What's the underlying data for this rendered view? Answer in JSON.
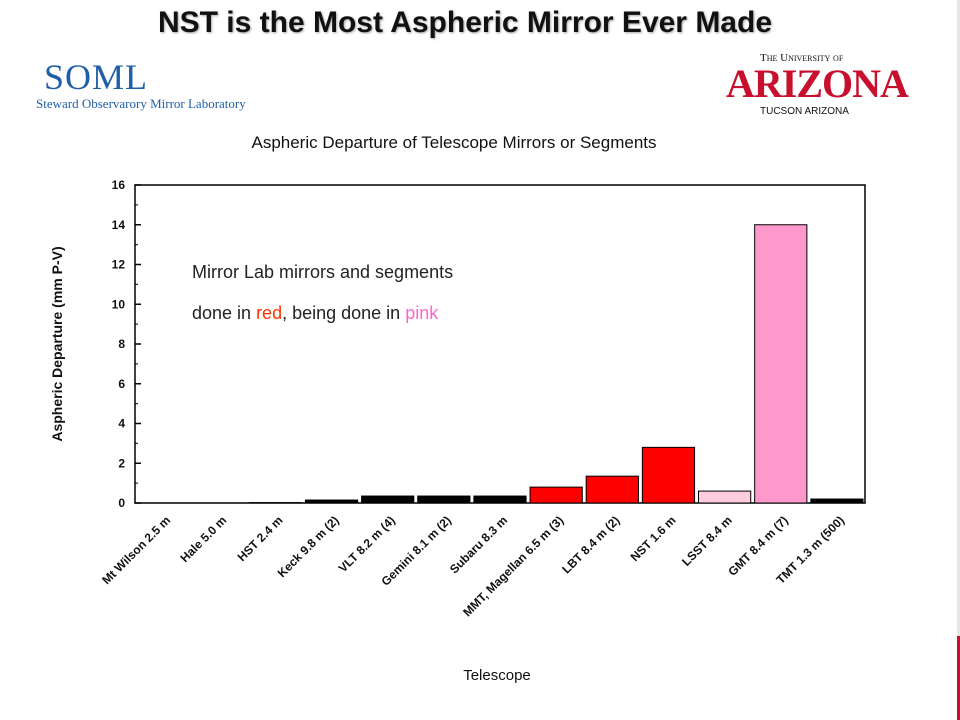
{
  "slide": {
    "title": "NST is the Most Aspheric Mirror Ever Made"
  },
  "logos": {
    "soml_mark": "SOML",
    "soml_text": "Steward Observarory Mirror Laboratory",
    "ua_top": "The University of",
    "ua_main": "ARIZONA",
    "ua_bottom": "TUCSON ARIZONA"
  },
  "colors": {
    "done": "#ff0000",
    "in_progress": "#ff99cc",
    "other": "#000000",
    "pending_light": "#ffccdd"
  },
  "chart_data": {
    "type": "bar",
    "title": "Aspheric Departure of Telescope Mirrors or Segments",
    "xlabel": "Telescope",
    "ylabel": "Aspheric Departure (mm P-V)",
    "ylim": [
      0,
      16
    ],
    "yticks": [
      0,
      2,
      4,
      6,
      8,
      10,
      12,
      14,
      16
    ],
    "grid": false,
    "categories": [
      "Mt Wilson 2.5 m",
      "Hale 5.0 m",
      "HST 2.4 m",
      "Keck 9.8 m (2)",
      "VLT 8.2 m (4)",
      "Gemini 8.1 m (2)",
      "Subaru 8.3 m",
      "MMT, Magellan 6.5 m (3)",
      "LBT 8.4 m (2)",
      "NST 1.6 m",
      "LSST 8.4 m",
      "GMT 8.4 m (7)",
      "TMT 1.3 m (500)"
    ],
    "values": [
      0.0,
      0.0,
      0.02,
      0.15,
      0.35,
      0.35,
      0.35,
      0.8,
      1.35,
      2.8,
      0.6,
      14.0,
      0.2
    ],
    "bar_colors": [
      "#000000",
      "#000000",
      "#000000",
      "#000000",
      "#000000",
      "#000000",
      "#000000",
      "#ff0000",
      "#ff0000",
      "#ff0000",
      "#ffccdd",
      "#ff99cc",
      "#000000"
    ],
    "annotation": {
      "line1": "Mirror Lab mirrors and segments",
      "line2_prefix": "done in ",
      "line2_red": "red",
      "line2_mid": ", being done in ",
      "line2_pink": "pink"
    }
  }
}
